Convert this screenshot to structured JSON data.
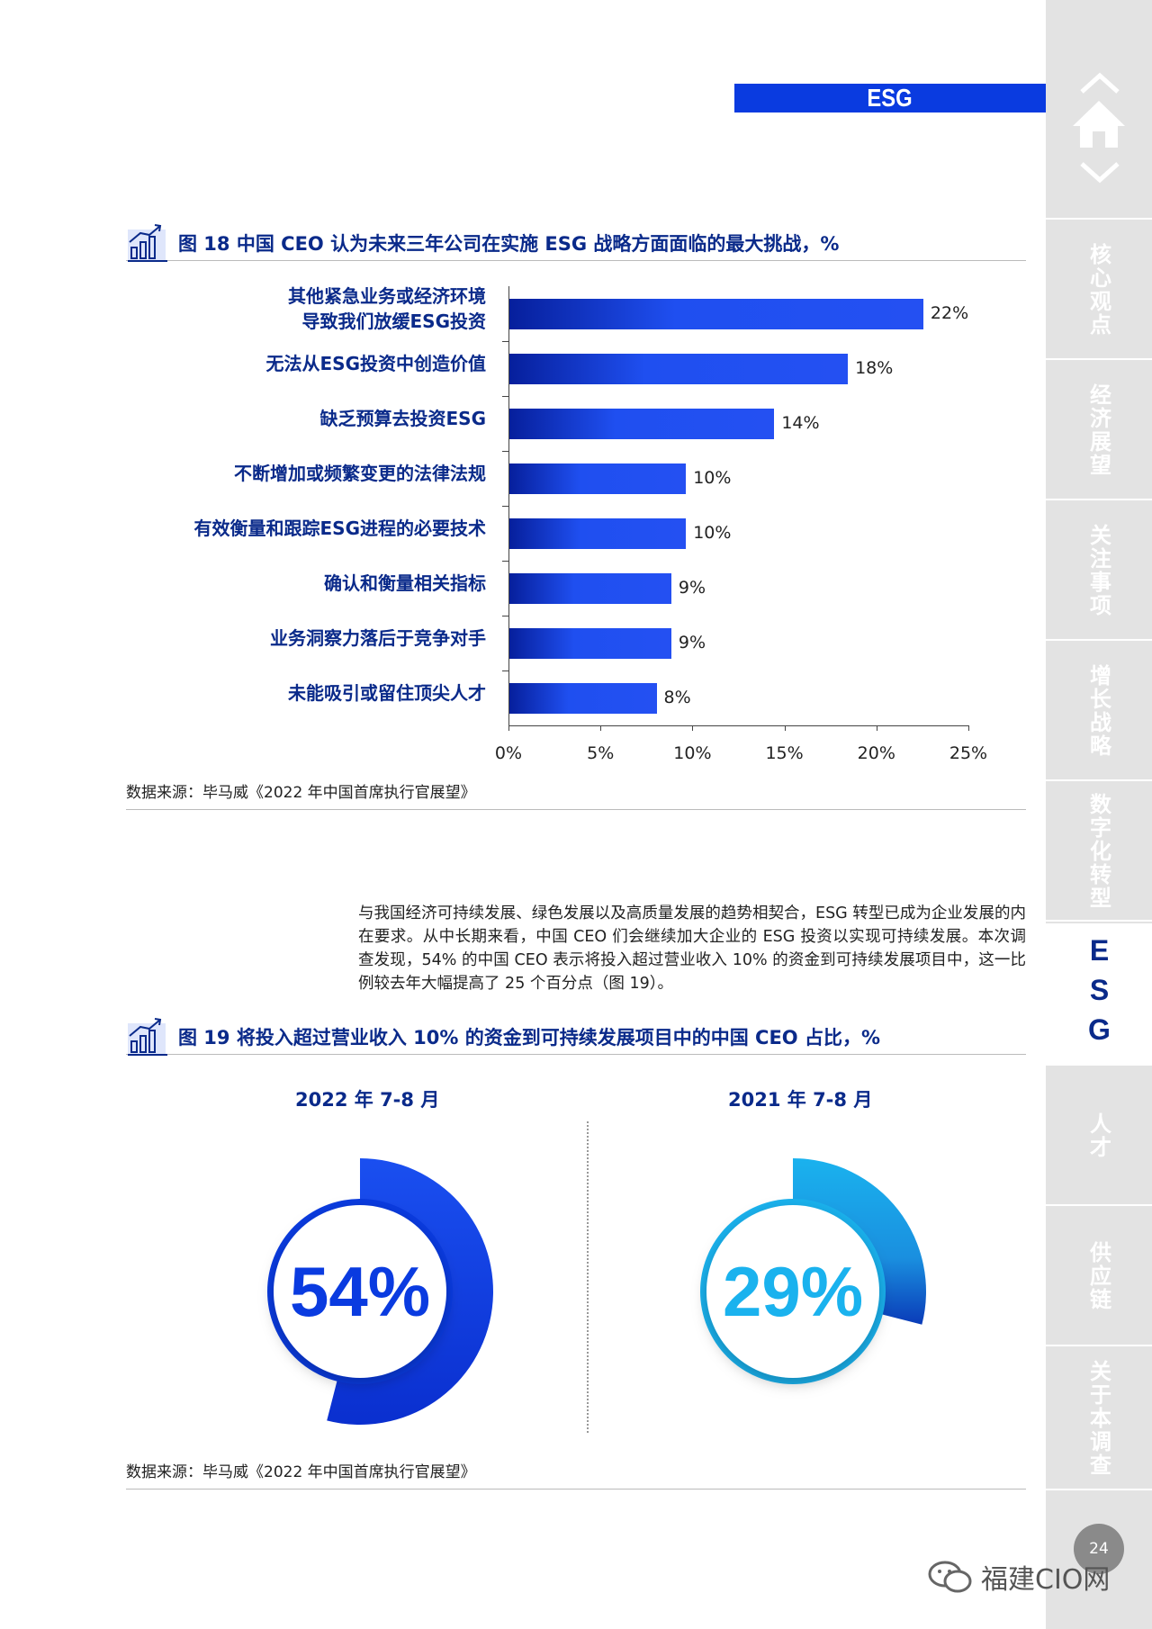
{
  "header": {
    "section": "ESG"
  },
  "sidebar": {
    "items": [
      "核心观点",
      "经济展望",
      "关注事项",
      "增长战略",
      "数字化转型",
      "ESG",
      "人才",
      "供应链",
      "关于本调查"
    ],
    "active": "ESG",
    "page_number": "24"
  },
  "watermark": "福建CIO网",
  "figure18": {
    "title": "图 18  中国 CEO 认为未来三年公司在实施 ESG 战略方面面临的最大挑战，%",
    "source": "数据来源：毕马威《2022 年中国首席执行官展望》",
    "chart_data": {
      "type": "bar",
      "orientation": "horizontal",
      "categories": [
        [
          "其他紧急业务或经济环境",
          "导致我们放缓ESG投资"
        ],
        [
          "无法从ESG投资中创造价值"
        ],
        [
          "缺乏预算去投资ESG"
        ],
        [
          "不断增加或频繁变更的法律法规"
        ],
        [
          "有效衡量和跟踪ESG进程的必要技术"
        ],
        [
          "确认和衡量相关指标"
        ],
        [
          "业务洞察力落后于竞争对手"
        ],
        [
          "未能吸引或留住顶尖人才"
        ]
      ],
      "values": [
        22.5,
        18.4,
        14.4,
        9.6,
        9.6,
        8.8,
        8.8,
        8.0
      ],
      "value_labels": [
        "22%",
        "18%",
        "14%",
        "10%",
        "10%",
        "9%",
        "9%",
        "8%"
      ],
      "xticks": [
        "0%",
        "5%",
        "10%",
        "15%",
        "20%",
        "25%"
      ],
      "xlim": [
        0,
        25
      ],
      "color": "#1f4ff0"
    }
  },
  "paragraph": "与我国经济可持续发展、绿色发展以及高质量发展的趋势相契合，ESG 转型已成为企业发展的内在要求。从中长期来看，中国 CEO 们会继续加大企业的 ESG 投资以实现可持续发展。本次调查发现，54% 的中国 CEO 表示将投入超过营业收入 10% 的资金到可持续发展项目中，这一比例较去年大幅提高了 25 个百分点（图 19）。",
  "figure19": {
    "title": "图 19  将投入超过营业收入 10% 的资金到可持续发展项目中的中国 CEO 占比，%",
    "source": "数据来源：毕马威《2022 年中国首席执行官展望》",
    "chart_data": {
      "type": "pie",
      "donuts": [
        {
          "label": "2022 年 7-8 月",
          "value": 54,
          "value_label": "54%",
          "color": "#0a3be0"
        },
        {
          "label": "2021 年 7-8 月",
          "value": 29,
          "value_label": "29%",
          "color": "#1ab2ee"
        }
      ]
    }
  }
}
